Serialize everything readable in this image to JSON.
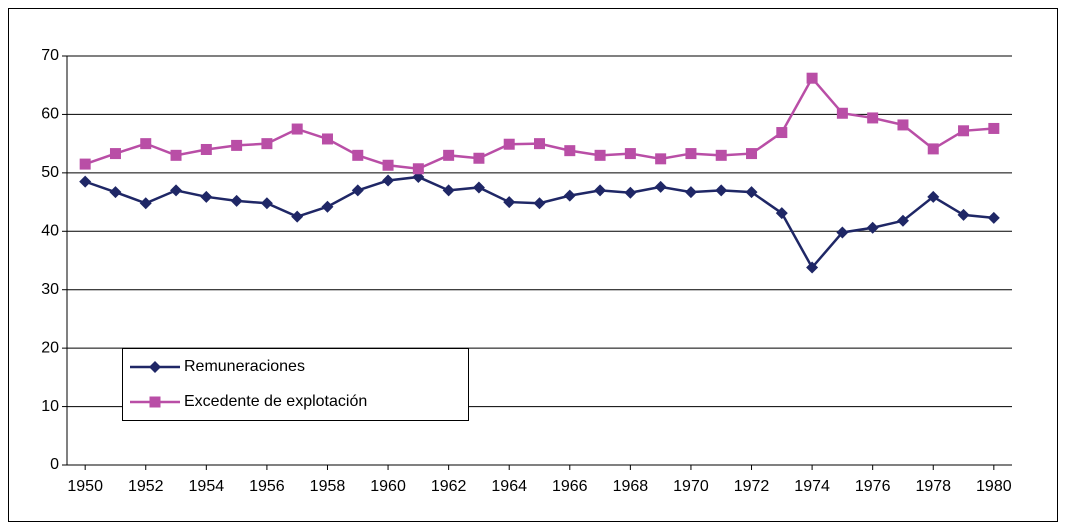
{
  "chart_data": {
    "type": "line",
    "x": [
      1950,
      1951,
      1952,
      1953,
      1954,
      1955,
      1956,
      1957,
      1958,
      1959,
      1960,
      1961,
      1962,
      1963,
      1964,
      1965,
      1966,
      1967,
      1968,
      1969,
      1970,
      1971,
      1972,
      1973,
      1974,
      1975,
      1976,
      1977,
      1978,
      1979,
      1980
    ],
    "series": [
      {
        "name": "Remuneraciones",
        "color": "#1f2766",
        "marker": "diamond",
        "values": [
          48.5,
          46.7,
          44.8,
          47.0,
          45.9,
          45.2,
          44.8,
          42.5,
          44.2,
          47.0,
          48.7,
          49.3,
          47.0,
          47.5,
          45.0,
          44.8,
          46.1,
          47.0,
          46.6,
          47.6,
          46.7,
          47.0,
          46.7,
          43.1,
          33.8,
          39.8,
          40.6,
          41.8,
          45.9,
          42.8,
          42.3
        ]
      },
      {
        "name": "Excedente de explotación",
        "color": "#b94ea6",
        "marker": "square",
        "values": [
          51.5,
          53.3,
          55.0,
          53.0,
          54.0,
          54.7,
          55.0,
          57.5,
          55.8,
          53.0,
          51.3,
          50.7,
          53.0,
          52.5,
          54.9,
          55.0,
          53.8,
          53.0,
          53.3,
          52.4,
          53.3,
          53.0,
          53.3,
          56.9,
          66.2,
          60.2,
          59.4,
          58.2,
          54.1,
          57.2,
          57.6
        ]
      }
    ],
    "xlim": [
      1949.4,
      1980.6
    ],
    "xticks": [
      1950,
      1952,
      1954,
      1956,
      1958,
      1960,
      1962,
      1964,
      1966,
      1968,
      1970,
      1972,
      1974,
      1976,
      1978,
      1980
    ],
    "ylim": [
      0,
      70
    ],
    "yticks": [
      0,
      10,
      20,
      30,
      40,
      50,
      60,
      70
    ],
    "grid": true,
    "legend": "lower left"
  }
}
